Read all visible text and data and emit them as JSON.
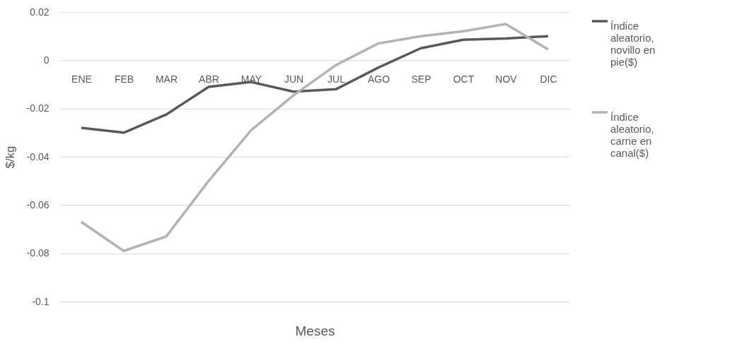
{
  "chart_data": {
    "type": "line",
    "xlabel": "Meses",
    "ylabel": "$/kg",
    "categories": [
      "ENE",
      "FEB",
      "MAR",
      "ABR",
      "MAY",
      "JUN",
      "JUL",
      "AGO",
      "SEP",
      "OCT",
      "NOV",
      "DIC"
    ],
    "series": [
      {
        "name": "Índice aleatorio, novillo en pie($)",
        "color": "#595959",
        "values": [
          -0.028,
          -0.03,
          -0.0225,
          -0.011,
          -0.009,
          -0.013,
          -0.012,
          -0.003,
          0.005,
          0.0085,
          0.009,
          0.01
        ]
      },
      {
        "name": "Índice aleatorio, carne en canal($)",
        "color": "#b3b3b3",
        "values": [
          -0.067,
          -0.079,
          -0.073,
          -0.05,
          -0.029,
          -0.0145,
          -0.002,
          0.007,
          0.01,
          0.012,
          0.015,
          0.0045
        ]
      }
    ],
    "ylim": [
      -0.1,
      0.02
    ],
    "yticks": [
      -0.1,
      -0.08,
      -0.06,
      -0.04,
      -0.02,
      0,
      0.02
    ],
    "grid": "y",
    "legend": "right",
    "marker": "none",
    "line_style": "solid"
  }
}
